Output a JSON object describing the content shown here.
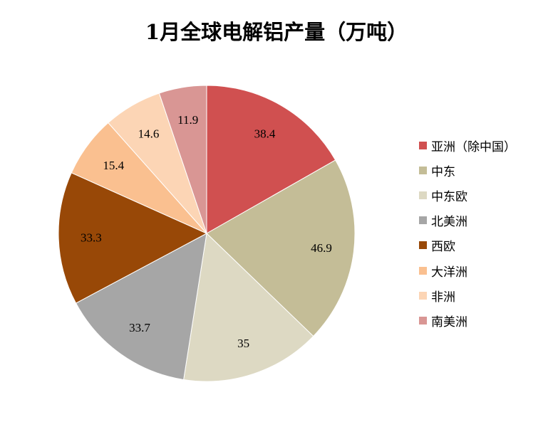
{
  "chart_data": {
    "type": "pie",
    "title": "1月全球电解铝产量（万吨）",
    "start": "top",
    "direction": "clockwise",
    "legend_position": "right",
    "slices": [
      {
        "label": "亚洲（除中国）",
        "value": 38.4,
        "color": "#D05050"
      },
      {
        "label": "中东",
        "value": 46.9,
        "color": "#C4BD97"
      },
      {
        "label": "中东欧",
        "value": 35,
        "color": "#DDD9C3"
      },
      {
        "label": "北美洲",
        "value": 33.7,
        "color": "#A6A6A6"
      },
      {
        "label": "西欧",
        "value": 33.3,
        "color": "#984807"
      },
      {
        "label": "大洋洲",
        "value": 15.4,
        "color": "#FAC090"
      },
      {
        "label": "非洲",
        "value": 14.6,
        "color": "#FCD5B5"
      },
      {
        "label": "南美洲",
        "value": 11.9,
        "color": "#D99694"
      }
    ]
  }
}
